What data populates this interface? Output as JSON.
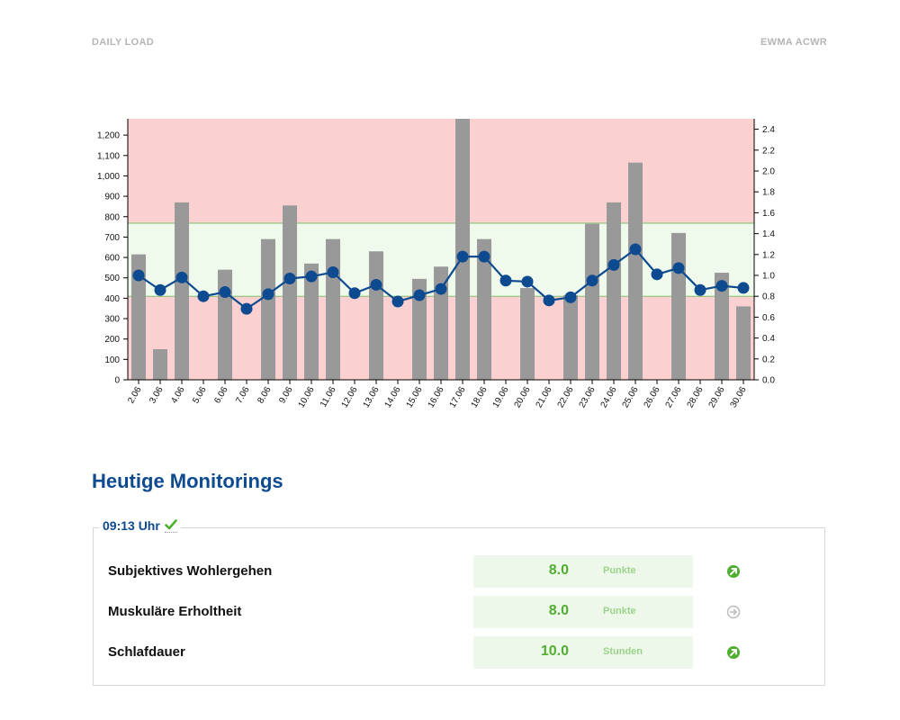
{
  "header": {
    "left": "DAILY LOAD",
    "right": "EWMA ACWR"
  },
  "colors": {
    "bar": "#999999",
    "line": "#0d4a8f",
    "danger_zone": "#fbd0d1",
    "safe_zone": "#eff9ec",
    "zone_border": "#7fbf6a",
    "accent": "#4fae2f"
  },
  "chart_data": {
    "type": "bar",
    "categories": [
      "2.06",
      "3.06",
      "4.06",
      "5.06",
      "6.06",
      "7.06",
      "8.06",
      "9.06",
      "10.06",
      "11.06",
      "12.06",
      "13.06",
      "14.06",
      "15.06",
      "16.06",
      "17.06",
      "18.06",
      "19.06",
      "20.06",
      "21.06",
      "22.06",
      "23.06",
      "24.06",
      "25.06",
      "26.06",
      "27.06",
      "28.06",
      "29.06",
      "30.06"
    ],
    "bars": {
      "values": [
        615,
        150,
        870,
        0,
        540,
        0,
        690,
        855,
        570,
        690,
        0,
        630,
        0,
        495,
        555,
        1280,
        690,
        0,
        450,
        0,
        415,
        765,
        870,
        1065,
        0,
        720,
        0,
        525,
        360
      ],
      "ylim": [
        0,
        1280
      ],
      "yticks": [
        0,
        100,
        200,
        300,
        400,
        500,
        600,
        700,
        800,
        900,
        1000,
        1100,
        1200
      ],
      "ytick_labels": [
        "0",
        "100",
        "200",
        "300",
        "400",
        "500",
        "600",
        "700",
        "800",
        "900",
        "1,000",
        "1,100",
        "1,200"
      ]
    },
    "line": {
      "values": [
        1.0,
        0.86,
        0.98,
        0.8,
        0.84,
        0.68,
        0.82,
        0.97,
        0.99,
        1.03,
        0.83,
        0.91,
        0.75,
        0.81,
        0.87,
        1.18,
        1.18,
        0.95,
        0.94,
        0.76,
        0.79,
        0.95,
        1.1,
        1.25,
        1.01,
        1.07,
        0.86,
        0.9,
        0.88
      ],
      "y2lim": [
        0,
        2.5
      ],
      "y2ticks": [
        0,
        0.2,
        0.4,
        0.6,
        0.8,
        1.0,
        1.2,
        1.4,
        1.6,
        1.8,
        2.0,
        2.2,
        2.4
      ],
      "y2tick_labels": [
        "0.0",
        "0.2",
        "0.4",
        "0.6",
        "0.8",
        "1.0",
        "1.2",
        "1.4",
        "1.6",
        "1.8",
        "2.0",
        "2.2",
        "2.4"
      ]
    },
    "safe_zone": [
      0.8,
      1.5
    ],
    "grid": false
  },
  "section": {
    "title": "Heutige Monitorings"
  },
  "monitoring": {
    "time": "09:13 Uhr",
    "check_icon": "check-icon",
    "rows": [
      {
        "label": "Subjektives Wohlergehen",
        "value": "8.0",
        "unit": "Punkte",
        "trend": "up"
      },
      {
        "label": "Muskuläre Erholtheit",
        "value": "8.0",
        "unit": "Punkte",
        "trend": "neutral"
      },
      {
        "label": "Schlafdauer",
        "value": "10.0",
        "unit": "Stunden",
        "trend": "up"
      }
    ]
  }
}
